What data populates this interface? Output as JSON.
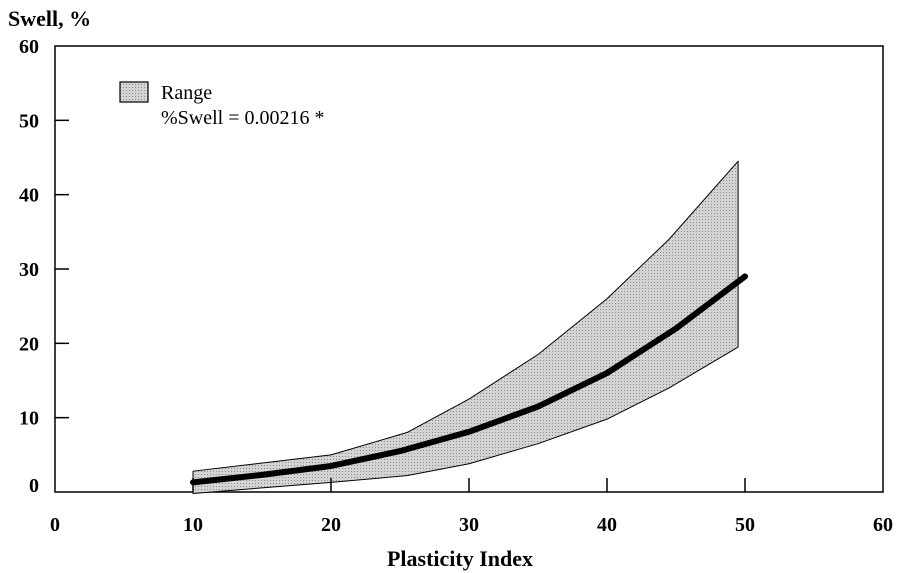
{
  "chart_data": {
    "type": "area",
    "ylabel": "Swell, %",
    "xlabel": "Plasticity Index",
    "xlim": [
      0,
      60
    ],
    "ylim": [
      0,
      60
    ],
    "x_ticks": [
      0,
      10,
      20,
      30,
      40,
      50,
      60
    ],
    "y_ticks": [
      0,
      10,
      20,
      30,
      40,
      50,
      60
    ],
    "grid": false,
    "legend": {
      "position": "top-left",
      "range_label": "Range",
      "equation_label": "%Swell = 0.00216 *"
    },
    "series": [
      {
        "name": "Range",
        "kind": "band",
        "x": [
          10,
          20,
          25.5,
          30,
          35,
          40,
          44.5,
          49.5
        ],
        "upper": [
          2.8,
          5,
          8,
          12.5,
          18.5,
          26,
          34,
          44.5
        ],
        "lower": [
          -0.2,
          1.3,
          2.2,
          3.8,
          6.5,
          9.8,
          14,
          19.5
        ]
      },
      {
        "name": "%Swell = 0.00216 *",
        "kind": "line",
        "x": [
          10,
          15,
          20,
          25,
          30,
          35,
          40,
          45,
          50
        ],
        "y": [
          1.3,
          2.3,
          3.5,
          5.5,
          8.1,
          11.5,
          16.0,
          22.0,
          29.0
        ]
      }
    ],
    "colors": {
      "band_fill": "#c8c8c8",
      "band_stroke": "#000000",
      "curve": "#000000"
    }
  }
}
